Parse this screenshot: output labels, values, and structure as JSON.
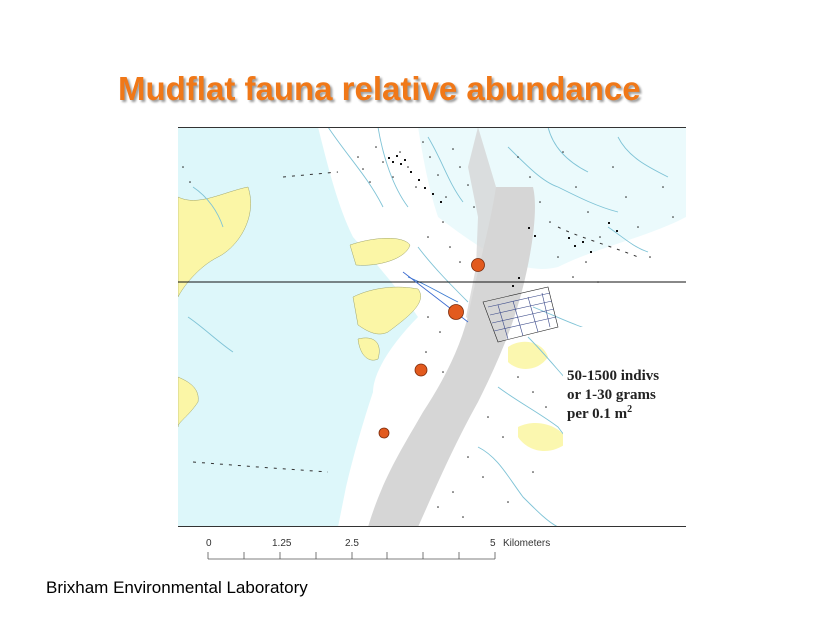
{
  "title": "Mudflat fauna relative abundance",
  "legend": {
    "line1": "50-1500 indivs",
    "line2": "or 1-30 grams",
    "line3_prefix": "per 0.1 m",
    "line3_sup": "2"
  },
  "scale": {
    "ticks": [
      "0",
      "1.25",
      "2.5",
      "5"
    ],
    "unit": "Kilometers"
  },
  "footer": "Brixham Environmental Laboratory",
  "colors": {
    "title": "#f07818",
    "water": "#ddf7fa",
    "mudflat": "#d6d6d6",
    "vegetation": "#fbf6a6",
    "sample_point": "#e25a1e",
    "streams": "#7fc3d6"
  }
}
